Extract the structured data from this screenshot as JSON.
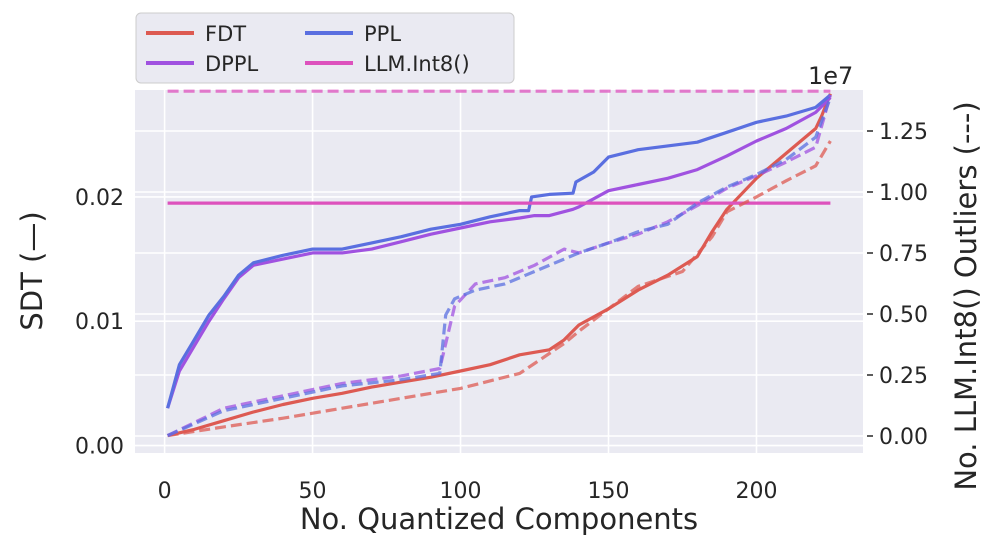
{
  "chart_data": {
    "type": "line",
    "xlabel": "No. Quantized Components",
    "ylabel": "SDT (—)",
    "y2label": "No. LLM.Int8() Outliers (---)",
    "y2_offset_text": "1e7",
    "xlim": [
      -10,
      236
    ],
    "ylim": [
      -0.0006,
      0.0286
    ],
    "y2lim": [
      -0.0006,
      0.0286
    ],
    "y2_scale_note": "secondary axis values are in units of 1e7",
    "xticks": [
      "0",
      "50",
      "100",
      "150",
      "200"
    ],
    "xtick_values": [
      0,
      50,
      100,
      150,
      200
    ],
    "yticks": [
      "0.00",
      "0.01",
      "0.02"
    ],
    "ytick_values": [
      0.0,
      0.01,
      0.02
    ],
    "y2ticks": [
      "0.00",
      "0.25",
      "0.50",
      "0.75",
      "1.00",
      "1.25"
    ],
    "y2tick_values": [
      0.0,
      0.25,
      0.5,
      0.75,
      1.0,
      1.25
    ],
    "grid": true,
    "legend_position": "top-left, above the plot",
    "legend": [
      {
        "name": "FDT",
        "color": "#dd5a52"
      },
      {
        "name": "DPPL",
        "color": "#a052e0"
      },
      {
        "name": "PPL",
        "color": "#5a6fe0"
      },
      {
        "name": "LLM.Int8()",
        "color": "#dd52bd"
      }
    ],
    "series": [
      {
        "name": "FDT",
        "color": "#dd5a52",
        "axis": "left",
        "style": "solid",
        "points": [
          [
            1,
            0.0008
          ],
          [
            10,
            0.0013
          ],
          [
            20,
            0.002
          ],
          [
            30,
            0.0027
          ],
          [
            40,
            0.0033
          ],
          [
            50,
            0.0038
          ],
          [
            60,
            0.0042
          ],
          [
            70,
            0.0047
          ],
          [
            80,
            0.0051
          ],
          [
            90,
            0.0055
          ],
          [
            100,
            0.006
          ],
          [
            110,
            0.0065
          ],
          [
            120,
            0.0073
          ],
          [
            125,
            0.0075
          ],
          [
            130,
            0.0077
          ],
          [
            135,
            0.0085
          ],
          [
            140,
            0.0097
          ],
          [
            150,
            0.011
          ],
          [
            160,
            0.0125
          ],
          [
            170,
            0.0137
          ],
          [
            180,
            0.0152
          ],
          [
            185,
            0.0172
          ],
          [
            190,
            0.019
          ],
          [
            200,
            0.0215
          ],
          [
            210,
            0.0235
          ],
          [
            220,
            0.0255
          ],
          [
            222,
            0.0265
          ],
          [
            225,
            0.0283
          ]
        ]
      },
      {
        "name": "DPPL",
        "color": "#a052e0",
        "axis": "left",
        "style": "solid",
        "points": [
          [
            1,
            0.003
          ],
          [
            5,
            0.006
          ],
          [
            10,
            0.008
          ],
          [
            15,
            0.01
          ],
          [
            20,
            0.0118
          ],
          [
            25,
            0.0135
          ],
          [
            30,
            0.0145
          ],
          [
            40,
            0.015
          ],
          [
            50,
            0.0155
          ],
          [
            60,
            0.0155
          ],
          [
            70,
            0.0158
          ],
          [
            80,
            0.0164
          ],
          [
            90,
            0.017
          ],
          [
            100,
            0.0175
          ],
          [
            110,
            0.018
          ],
          [
            120,
            0.0183
          ],
          [
            125,
            0.0185
          ],
          [
            130,
            0.0185
          ],
          [
            138,
            0.019
          ],
          [
            140,
            0.0192
          ],
          [
            150,
            0.0205
          ],
          [
            160,
            0.021
          ],
          [
            170,
            0.0215
          ],
          [
            180,
            0.0222
          ],
          [
            190,
            0.0233
          ],
          [
            200,
            0.0245
          ],
          [
            210,
            0.0255
          ],
          [
            220,
            0.0268
          ],
          [
            225,
            0.028
          ]
        ]
      },
      {
        "name": "PPL",
        "color": "#5a6fe0",
        "axis": "left",
        "style": "solid",
        "points": [
          [
            1,
            0.003
          ],
          [
            5,
            0.0065
          ],
          [
            10,
            0.0085
          ],
          [
            15,
            0.0105
          ],
          [
            20,
            0.012
          ],
          [
            25,
            0.0137
          ],
          [
            30,
            0.0147
          ],
          [
            40,
            0.0153
          ],
          [
            50,
            0.0158
          ],
          [
            60,
            0.0158
          ],
          [
            70,
            0.0163
          ],
          [
            80,
            0.0168
          ],
          [
            90,
            0.0174
          ],
          [
            100,
            0.0178
          ],
          [
            110,
            0.0184
          ],
          [
            120,
            0.0189
          ],
          [
            123,
            0.0189
          ],
          [
            124,
            0.02
          ],
          [
            130,
            0.0202
          ],
          [
            138,
            0.0203
          ],
          [
            139,
            0.0212
          ],
          [
            145,
            0.022
          ],
          [
            150,
            0.0232
          ],
          [
            160,
            0.0238
          ],
          [
            170,
            0.0241
          ],
          [
            180,
            0.0244
          ],
          [
            190,
            0.0252
          ],
          [
            200,
            0.026
          ],
          [
            210,
            0.0265
          ],
          [
            220,
            0.0272
          ],
          [
            225,
            0.0282
          ]
        ]
      },
      {
        "name": "LLM.Int8()",
        "color": "#dd52bd",
        "axis": "left",
        "style": "solid",
        "points": [
          [
            1,
            0.0195
          ],
          [
            225,
            0.0195
          ]
        ]
      },
      {
        "name": "FDT outliers",
        "color": "#dd5a52",
        "axis": "right",
        "style": "dashed",
        "points": [
          [
            1,
            0.0008
          ],
          [
            20,
            0.0015
          ],
          [
            40,
            0.0022
          ],
          [
            60,
            0.003
          ],
          [
            80,
            0.0038
          ],
          [
            100,
            0.0046
          ],
          [
            120,
            0.0058
          ],
          [
            125,
            0.0066
          ],
          [
            130,
            0.0074
          ],
          [
            135,
            0.0082
          ],
          [
            140,
            0.0092
          ],
          [
            160,
            0.0128
          ],
          [
            175,
            0.014
          ],
          [
            185,
            0.0168
          ],
          [
            190,
            0.0188
          ],
          [
            200,
            0.02
          ],
          [
            210,
            0.0213
          ],
          [
            220,
            0.0225
          ],
          [
            225,
            0.0245
          ]
        ]
      },
      {
        "name": "DPPL outliers",
        "color": "#a052e0",
        "axis": "right",
        "style": "dashed",
        "points": [
          [
            1,
            0.0008
          ],
          [
            20,
            0.003
          ],
          [
            40,
            0.004
          ],
          [
            60,
            0.005
          ],
          [
            80,
            0.0056
          ],
          [
            93,
            0.0062
          ],
          [
            98,
            0.0112
          ],
          [
            105,
            0.013
          ],
          [
            115,
            0.0135
          ],
          [
            125,
            0.0145
          ],
          [
            135,
            0.0158
          ],
          [
            140,
            0.0155
          ],
          [
            150,
            0.0163
          ],
          [
            160,
            0.017
          ],
          [
            170,
            0.018
          ],
          [
            180,
            0.0193
          ],
          [
            190,
            0.0207
          ],
          [
            200,
            0.0217
          ],
          [
            210,
            0.0228
          ],
          [
            220,
            0.024
          ],
          [
            225,
            0.0282
          ]
        ]
      },
      {
        "name": "PPL outliers",
        "color": "#5a6fe0",
        "axis": "right",
        "style": "dashed",
        "points": [
          [
            1,
            0.0008
          ],
          [
            20,
            0.0028
          ],
          [
            40,
            0.0038
          ],
          [
            60,
            0.0048
          ],
          [
            80,
            0.0053
          ],
          [
            93,
            0.0058
          ],
          [
            95,
            0.0105
          ],
          [
            98,
            0.0118
          ],
          [
            105,
            0.0125
          ],
          [
            115,
            0.013
          ],
          [
            125,
            0.014
          ],
          [
            135,
            0.015
          ],
          [
            140,
            0.0155
          ],
          [
            150,
            0.0163
          ],
          [
            160,
            0.0172
          ],
          [
            170,
            0.0178
          ],
          [
            180,
            0.0195
          ],
          [
            190,
            0.0208
          ],
          [
            200,
            0.0218
          ],
          [
            210,
            0.023
          ],
          [
            220,
            0.0248
          ],
          [
            225,
            0.028
          ]
        ]
      },
      {
        "name": "LLM.Int8() outliers",
        "color": "#dd52bd",
        "axis": "right",
        "style": "dashed",
        "points": [
          [
            1,
            0.0285
          ],
          [
            225,
            0.0285
          ]
        ]
      }
    ]
  }
}
